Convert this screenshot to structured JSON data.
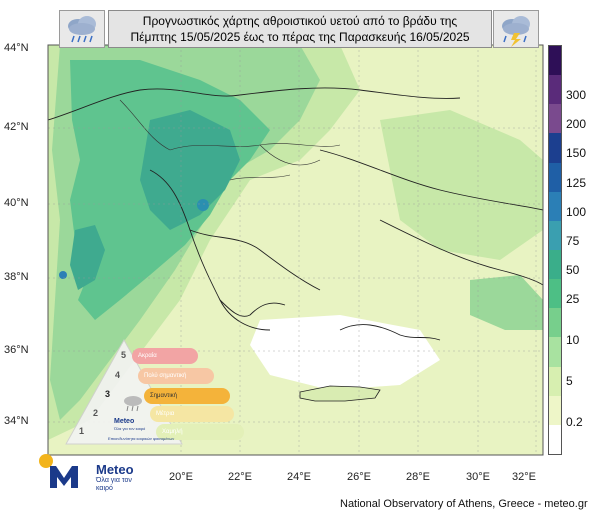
{
  "title": {
    "line1": "Προγνωστικός χάρτης αθροιστικού υετού από το βράδυ της",
    "line2": "Πέμπτης 15/05/2025 έως το πέρας της Παρασκευής 16/05/2025"
  },
  "icons": {
    "left": "rain-cloud-icon",
    "right": "thunderstorm-cloud-icon"
  },
  "latitude_labels": [
    "44°N",
    "42°N",
    "40°N",
    "38°N",
    "36°N",
    "34°N"
  ],
  "longitude_labels": [
    "20°E",
    "22°E",
    "24°E",
    "26°E",
    "28°E",
    "30°E",
    "32°E"
  ],
  "legend": {
    "ticks": [
      "300",
      "200",
      "150",
      "125",
      "100",
      "75",
      "50",
      "25",
      "10",
      "5",
      "0.2"
    ],
    "colors": [
      "#2e0f57",
      "#5a2b7a",
      "#7a4a8e",
      "#1c3f8f",
      "#1f5fa6",
      "#2b7fb6",
      "#3a9fb0",
      "#3aae8a",
      "#4dbf85",
      "#77cf8c",
      "#a8e2a0",
      "#d7efb0",
      "#eef6c8",
      "#ffffff"
    ]
  },
  "risk_levels": {
    "rows": [
      {
        "number": "5",
        "label": "Ακραία",
        "color": "#f2a4a4"
      },
      {
        "number": "4",
        "label": "Πολύ σημαντική",
        "color": "#f7c7a4"
      },
      {
        "number": "3",
        "label": "Σημαντική",
        "color": "#f4b33a"
      },
      {
        "number": "2",
        "label": "Μέτρια",
        "color": "#f5e6a3"
      },
      {
        "number": "1",
        "label": "Χαμηλή",
        "color": "#e3f0b8"
      }
    ],
    "caption": "Επικινδυνότητα καιρικών φαινομένων",
    "brand": "Meteo",
    "brand_sub": "Όλα για τον καιρό"
  },
  "logo": {
    "name": "Meteo",
    "slogan": "Όλα για τον καιρό"
  },
  "credit": "National Observatory of Athens, Greece - meteo.gr"
}
